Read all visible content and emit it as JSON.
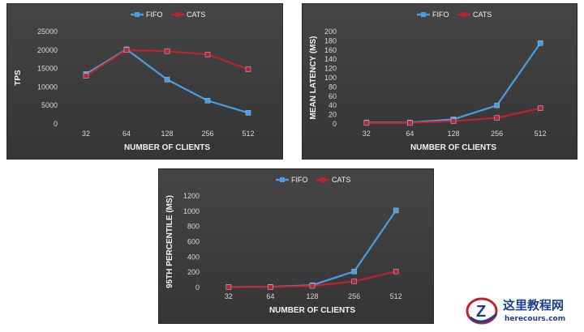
{
  "chart_data": [
    {
      "type": "line",
      "categories": [
        "32",
        "64",
        "128",
        "256",
        "512"
      ],
      "series": [
        {
          "name": "FIFO",
          "values": [
            13500,
            20200,
            12000,
            6300,
            3000
          ],
          "color": "#4a9de0"
        },
        {
          "name": "CATS",
          "values": [
            13000,
            20000,
            19700,
            18800,
            14800
          ],
          "color": "#c0232c"
        }
      ],
      "xlabel": "NUMBER OF CLIENTS",
      "ylabel": "TPS",
      "ylim": [
        0,
        25000
      ],
      "yticks": [
        "0",
        "5000",
        "10000",
        "15000",
        "20000",
        "25000"
      ],
      "legend": "top-center",
      "grid": false
    },
    {
      "type": "line",
      "categories": [
        "32",
        "64",
        "128",
        "256",
        "512"
      ],
      "series": [
        {
          "name": "FIFO",
          "values": [
            3,
            3,
            10,
            40,
            175
          ],
          "color": "#4a9de0"
        },
        {
          "name": "CATS",
          "values": [
            2,
            2,
            6,
            13,
            34
          ],
          "color": "#c0232c"
        }
      ],
      "xlabel": "NUMBER OF CLIENTS",
      "ylabel": "MEAN LATENCY (MS)",
      "ylim": [
        0,
        200
      ],
      "yticks": [
        "0",
        "20",
        "40",
        "60",
        "80",
        "100",
        "120",
        "140",
        "160",
        "180",
        "200"
      ],
      "legend": "top-center",
      "grid": false
    },
    {
      "type": "line",
      "categories": [
        "32",
        "64",
        "128",
        "256",
        "512"
      ],
      "series": [
        {
          "name": "FIFO",
          "values": [
            5,
            8,
            30,
            210,
            1010
          ],
          "color": "#4a9de0"
        },
        {
          "name": "CATS",
          "values": [
            3,
            5,
            20,
            80,
            210
          ],
          "color": "#c0232c"
        }
      ],
      "xlabel": "NUMBER OF CLIENTS",
      "ylabel": "95TH PERCENTILE (MS)",
      "ylim": [
        0,
        1200
      ],
      "yticks": [
        "0",
        "200",
        "400",
        "600",
        "800",
        "1000",
        "1200"
      ],
      "legend": "top-center",
      "grid": false
    }
  ],
  "watermark": {
    "title": "这里教程网",
    "url": "herecours.com",
    "letter": "Z"
  }
}
